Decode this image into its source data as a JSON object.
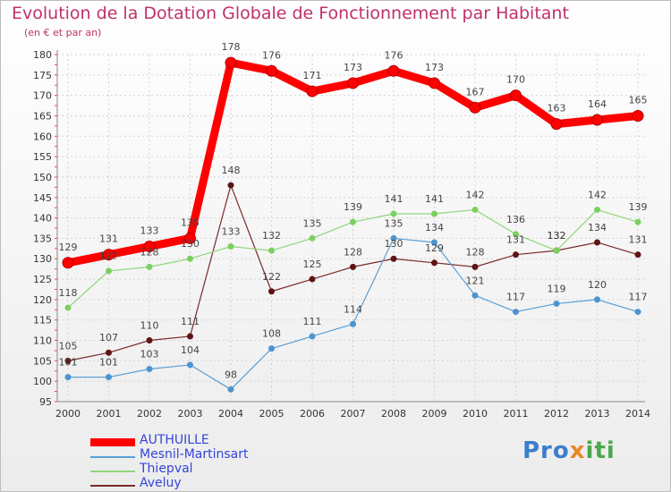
{
  "title": "Evolution de la Dotation Globale de Fonctionnement par Habitant",
  "subtitle": "(en € et par an)",
  "logo": {
    "part1": "Pro",
    "part2": "x",
    "part3": "iti"
  },
  "chart_data": {
    "type": "line",
    "title": "Evolution de la Dotation Globale de Fonctionnement par Habitant",
    "subtitle": "(en € et par an)",
    "xlabel": "",
    "ylabel": "",
    "ylim": [
      95,
      180
    ],
    "y_ticks": [
      95,
      100,
      105,
      110,
      115,
      120,
      125,
      130,
      135,
      140,
      145,
      150,
      155,
      160,
      165,
      170,
      175,
      180
    ],
    "categories": [
      "2000",
      "2001",
      "2002",
      "2003",
      "2004",
      "2005",
      "2006",
      "2007",
      "2008",
      "2009",
      "2010",
      "2011",
      "2012",
      "2013",
      "2014"
    ],
    "grid": true,
    "legend_position": "bottom-left",
    "series": [
      {
        "name": "AUTHUILLE",
        "color": "#ff0000",
        "values": [
          129,
          131,
          133,
          135,
          178,
          176,
          171,
          173,
          176,
          173,
          167,
          170,
          163,
          164,
          165
        ]
      },
      {
        "name": "Mesnil-Martinsart",
        "color": "#5a9fd4",
        "values": [
          101,
          101,
          103,
          104,
          98,
          108,
          111,
          114,
          135,
          134,
          121,
          117,
          119,
          120,
          117
        ]
      },
      {
        "name": "Thiepval",
        "color": "#8fd67a",
        "values": [
          118,
          127,
          128,
          130,
          133,
          132,
          135,
          139,
          141,
          141,
          142,
          136,
          132,
          142,
          139
        ]
      },
      {
        "name": "Aveluy",
        "color": "#7a2a2a",
        "values": [
          105,
          107,
          110,
          111,
          148,
          122,
          125,
          128,
          130,
          129,
          128,
          131,
          132,
          134,
          131
        ]
      }
    ]
  }
}
